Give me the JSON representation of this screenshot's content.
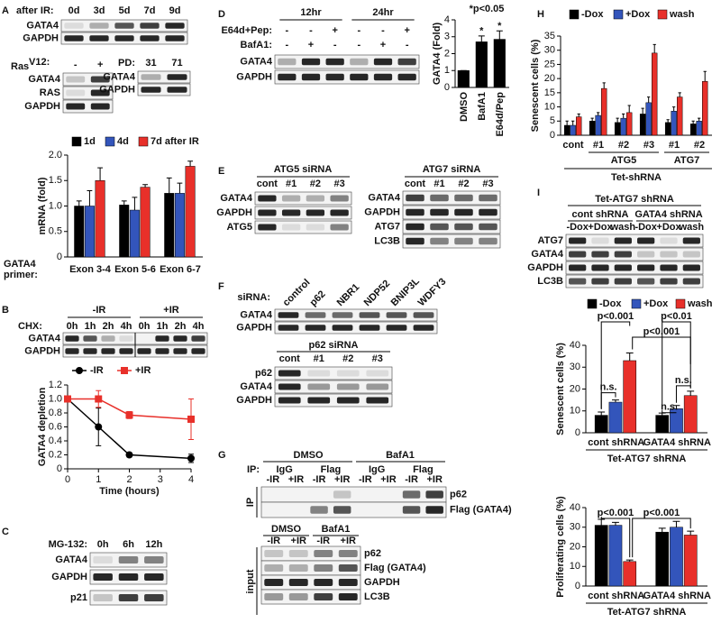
{
  "panels": {
    "A": {
      "letter": "A",
      "after_ir": "after IR:",
      "days": [
        "0d",
        "3d",
        "5d",
        "7d",
        "9d"
      ],
      "rows": [
        "GATA4",
        "GAPDH"
      ],
      "ras": "Ras",
      "ras_sup": "V12:",
      "ras_signs": [
        "-",
        "+"
      ],
      "ras_rows": [
        "GATA4",
        "RAS",
        "GAPDH"
      ],
      "pd": "PD:",
      "pd_values": [
        "31",
        "71"
      ],
      "pd_rows": [
        "GATA4",
        "GAPDH"
      ],
      "primer": [
        "GATA4",
        "primer:"
      ]
    },
    "B": {
      "letter": "B",
      "minus_ir": "-IR",
      "plus_ir": "+IR",
      "chx": "CHX:",
      "times": [
        "0h",
        "1h",
        "2h",
        "4h",
        "0h",
        "1h",
        "2h",
        "4h"
      ],
      "rows": [
        "GATA4",
        "GAPDH"
      ]
    },
    "C": {
      "letter": "C",
      "mg": "MG-132:",
      "times": [
        "0h",
        "6h",
        "12h"
      ],
      "rows": [
        "GATA4",
        "GAPDH",
        "p21"
      ]
    },
    "D": {
      "letter": "D",
      "hr12": "12hr",
      "hr24": "24hr",
      "e64": "E64d+Pep:",
      "baf": "BafA1:",
      "e64_signs": [
        "-",
        "-",
        "+",
        "-",
        "-",
        "+"
      ],
      "baf_signs": [
        "-",
        "+",
        "-",
        "-",
        "+",
        "-"
      ],
      "rows": [
        "GATA4",
        "GAPDH"
      ]
    },
    "E": {
      "letter": "E",
      "atg5": "ATG5 siRNA",
      "atg7": "ATG7 siRNA",
      "lanes": [
        "cont",
        "#1",
        "#2",
        "#3"
      ],
      "rows5": [
        "GATA4",
        "GAPDH",
        "ATG5"
      ],
      "rows7": [
        "GATA4",
        "GAPDH",
        "ATG7",
        "LC3B"
      ]
    },
    "F": {
      "letter": "F",
      "sirna": "siRNA:",
      "lanes": [
        "control",
        "p62",
        "NBR1",
        "NDP52",
        "BNIP3L",
        "WDFY3"
      ],
      "rows": [
        "GATA4",
        "GAPDH"
      ],
      "p62": "p62 siRNA",
      "lanes2": [
        "cont",
        "#1",
        "#2",
        "#3"
      ],
      "rows2": [
        "p62",
        "GATA4",
        "GAPDH"
      ]
    },
    "G": {
      "letter": "G",
      "dmso": "DMSO",
      "baf": "BafA1",
      "ip": "IP:",
      "antibodies": [
        "IgG",
        "Flag",
        "IgG",
        "Flag"
      ],
      "ir": [
        "-IR",
        "+IR"
      ],
      "ip_side": "IP",
      "ip_rows": [
        "p62",
        "Flag (GATA4)"
      ],
      "input_side": "input",
      "input_rows": [
        "p62",
        "Flag (GATA4)",
        "GAPDH",
        "LC3B"
      ]
    },
    "H": {
      "letter": "H"
    },
    "I": {
      "letter": "I",
      "title": "Tet-ATG7 shRNA",
      "cont": "cont shRNA",
      "gata4": "GATA4 shRNA",
      "lanes": [
        "-Dox",
        "+Dox",
        "wash"
      ],
      "rows": [
        "ATG7",
        "GATA4",
        "GAPDH",
        "LC3B"
      ]
    }
  },
  "chart_data": [
    {
      "type": "bar",
      "ylabel": "mRNA (fold)",
      "categories": [
        "Exon 3-4",
        "Exon 5-6",
        "Exon 6-7"
      ],
      "series": [
        {
          "name": "1d",
          "color": "#000000",
          "values": [
            1.0,
            1.02,
            1.25
          ],
          "errors": [
            0.1,
            0.08,
            0.3
          ]
        },
        {
          "name": "4d",
          "color": "#3355bb",
          "values": [
            1.0,
            0.92,
            1.25
          ],
          "errors": [
            0.3,
            0.25,
            0.2
          ]
        },
        {
          "name": "7d after IR",
          "color": "#e8302a",
          "values": [
            1.5,
            1.37,
            1.78
          ],
          "errors": [
            0.25,
            0.05,
            0.1
          ]
        }
      ],
      "ylim": [
        0,
        2
      ],
      "yticks": [
        0,
        0.5,
        {
          "value": 1,
          "label": "1.0"
        },
        1.5,
        {
          "value": 2,
          "label": "2.0"
        }
      ]
    },
    {
      "type": "line",
      "xlabel": "Time (hours)",
      "ylabel": "GATA4 depletion",
      "x": [
        0,
        1,
        2,
        4
      ],
      "series": [
        {
          "name": "-IR",
          "color": "#000000",
          "marker": "circle",
          "values": [
            1,
            0.6,
            0.2,
            0.15
          ],
          "errors": [
            0,
            0.27,
            0.03,
            0.06
          ]
        },
        {
          "name": "+IR",
          "color": "#e8302a",
          "marker": "square",
          "values": [
            1,
            1,
            0.77,
            0.71
          ],
          "errors": [
            0,
            0.12,
            0.05,
            0.29
          ]
        }
      ],
      "xlim": [
        0,
        4
      ],
      "xticks": [
        0,
        1,
        2,
        3,
        4
      ],
      "ylim": [
        0,
        1.2
      ],
      "yticks": [
        0,
        0.2,
        0.4,
        0.6,
        0.8,
        {
          "value": 1,
          "label": "1.0"
        },
        1.2
      ]
    },
    {
      "type": "bar",
      "ylabel": "GATA4 (Fold)",
      "categories": [
        "DMSO",
        "BafA1",
        "E64d/Pep"
      ],
      "series": [
        {
          "color": "#000000",
          "values": [
            1,
            2.7,
            2.85
          ],
          "errors": [
            0,
            0.35,
            0.5
          ]
        }
      ],
      "ylim": [
        0,
        4
      ],
      "yticks": [
        0,
        1,
        2,
        3,
        4
      ],
      "annotations": [
        "*p<0.05",
        "*",
        "*"
      ]
    },
    {
      "type": "bar",
      "ylabel": "Senescent cells (%)",
      "categories": [
        "cont",
        "#1",
        "#2",
        "#3",
        "#1",
        "#2"
      ],
      "groups": [
        "ATG5",
        "ATG7"
      ],
      "xlabel": "Tet-shRNA",
      "series": [
        {
          "name": "-Dox",
          "color": "#000000",
          "values": [
            3.5,
            5,
            4.5,
            7.5,
            4.5,
            4
          ],
          "errors": [
            1.5,
            1,
            1.5,
            2,
            1,
            1
          ]
        },
        {
          "name": "+Dox",
          "color": "#3355bb",
          "values": [
            3.5,
            7,
            6,
            11.5,
            8.5,
            5
          ],
          "errors": [
            1.5,
            1,
            1.5,
            2,
            1.5,
            1
          ]
        },
        {
          "name": "wash",
          "color": "#e8302a",
          "values": [
            6.5,
            16.5,
            8,
            29,
            13.5,
            19
          ],
          "errors": [
            1,
            2,
            2.5,
            3,
            1.5,
            3.5
          ]
        }
      ],
      "ylim": [
        0,
        35
      ],
      "yticks": [
        0,
        5,
        10,
        15,
        20,
        25,
        30,
        35
      ]
    },
    {
      "type": "bar",
      "ylabel": "Senescent cells (%)",
      "xlabel": "Tet-ATG7 shRNA",
      "categories": [
        "cont shRNA",
        "GATA4 shRNA"
      ],
      "series": [
        {
          "name": "-Dox",
          "color": "#000000",
          "values": [
            8,
            8
          ],
          "errors": [
            1.5,
            1
          ]
        },
        {
          "name": "+Dox",
          "color": "#3355bb",
          "values": [
            14,
            11
          ],
          "errors": [
            1,
            1.5
          ]
        },
        {
          "name": "wash",
          "color": "#e8302a",
          "values": [
            33,
            17
          ],
          "errors": [
            3.5,
            2
          ]
        }
      ],
      "ylim": [
        0,
        40
      ],
      "yticks": [
        0,
        10,
        20,
        30,
        40
      ],
      "annotations": [
        "p<0.001",
        "p<0.01",
        "p<0.001",
        "n.s.",
        "n.s.",
        "n.s."
      ]
    },
    {
      "type": "bar",
      "ylabel": "Proliferating cells (%)",
      "xlabel": "Tet-ATG7 shRNA",
      "categories": [
        "cont shRNA",
        "GATA4 shRNA"
      ],
      "series": [
        {
          "color": "#000000",
          "values": [
            31,
            27.5
          ],
          "errors": [
            3,
            2
          ]
        },
        {
          "color": "#3355bb",
          "values": [
            31,
            30
          ],
          "errors": [
            1.5,
            3
          ]
        },
        {
          "color": "#e8302a",
          "values": [
            12.5,
            26
          ],
          "errors": [
            0.8,
            2
          ]
        }
      ],
      "ylim": [
        0,
        40
      ],
      "yticks": [
        0,
        10,
        20,
        30,
        40
      ],
      "annotations": [
        "p<0.001",
        "p<0.001"
      ]
    }
  ]
}
